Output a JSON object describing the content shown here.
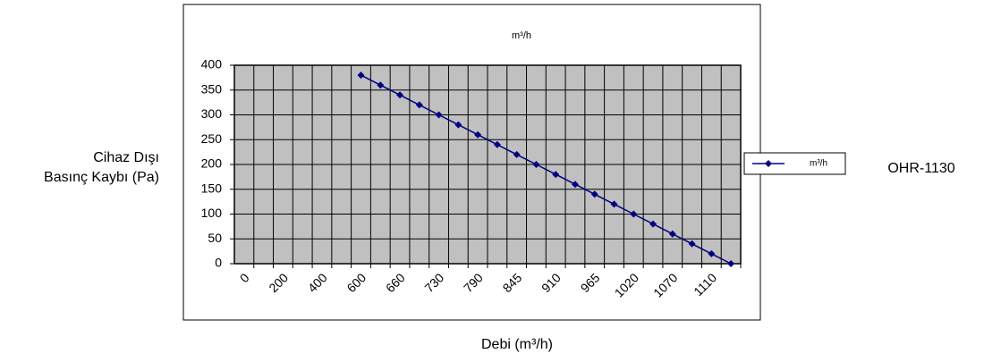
{
  "chart_data": {
    "type": "line",
    "title": "m³/h",
    "x_label": "Debi (m³/h)",
    "y_label": [
      "Cihaz Dışı",
      "Basınç Kaybı (Pa)"
    ],
    "side_note": "OHR-1130",
    "categories": [
      "0",
      null,
      "200",
      null,
      "400",
      null,
      "600",
      null,
      "660",
      null,
      "730",
      null,
      "790",
      null,
      "845",
      null,
      "910",
      null,
      "965",
      null,
      "1020",
      null,
      "1070",
      null,
      "1110",
      null
    ],
    "series": [
      {
        "name": "m³/h",
        "color": "#000080",
        "values": [
          null,
          null,
          null,
          null,
          null,
          null,
          380,
          360,
          340,
          320,
          300,
          280,
          260,
          240,
          220,
          200,
          180,
          160,
          140,
          120,
          100,
          80,
          60,
          40,
          20,
          0
        ]
      }
    ],
    "ylim": [
      0,
      400
    ],
    "yticks": [
      0,
      50,
      100,
      150,
      200,
      250,
      300,
      350,
      400
    ],
    "grid": true,
    "plot_background": "#c0c0c0",
    "legend": "right"
  }
}
